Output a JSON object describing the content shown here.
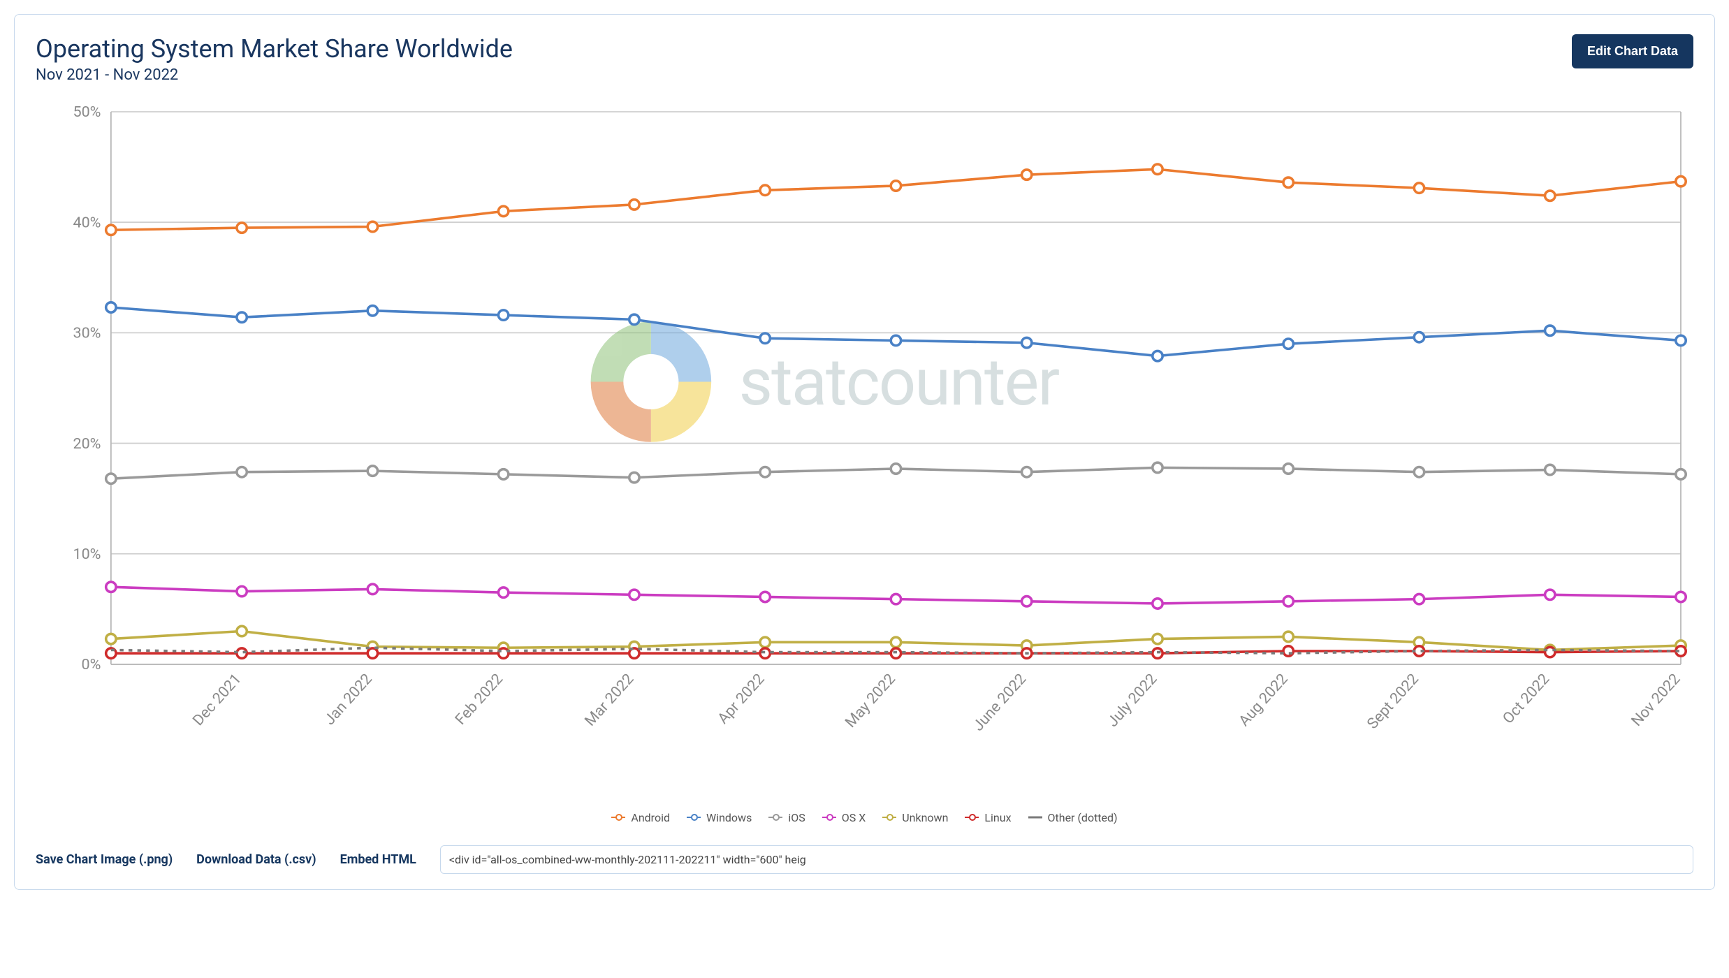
{
  "header": {
    "title": "Operating System Market Share Worldwide",
    "subtitle": "Nov 2021 - Nov 2022",
    "edit_button_label": "Edit Chart Data"
  },
  "chart": {
    "type": "line",
    "background_color": "#ffffff",
    "plot_border_color": "#b8b8b8",
    "grid_color": "#cfcfcf",
    "axis_text_color": "#8a8a8a",
    "axis_fontsize": 12,
    "watermark_text": "statcounter",
    "watermark_color": "#b8c5c8",
    "ylim": [
      0,
      50
    ],
    "ytick_step": 10,
    "ytick_suffix": "%",
    "x_labels": [
      "",
      "Dec 2021",
      "Jan 2022",
      "Feb 2022",
      "Mar 2022",
      "Apr 2022",
      "May 2022",
      "June 2022",
      "July 2022",
      "Aug 2022",
      "Sept 2022",
      "Oct 2022",
      "Nov 2022"
    ],
    "marker_radius": 4,
    "marker_fill": "#ffffff",
    "line_width": 2,
    "series": [
      {
        "name": "Android",
        "color": "#ec7b2f",
        "style": "solid",
        "values": [
          39.3,
          39.5,
          39.6,
          41.0,
          41.6,
          42.9,
          43.3,
          44.3,
          44.8,
          43.6,
          43.1,
          42.4,
          43.7
        ]
      },
      {
        "name": "Windows",
        "color": "#4981c6",
        "style": "solid",
        "values": [
          32.3,
          31.4,
          32.0,
          31.6,
          31.2,
          29.5,
          29.3,
          29.1,
          27.9,
          29.0,
          29.6,
          30.2,
          29.3
        ]
      },
      {
        "name": "iOS",
        "color": "#9a9a9a",
        "style": "solid",
        "values": [
          16.8,
          17.4,
          17.5,
          17.2,
          16.9,
          17.4,
          17.7,
          17.4,
          17.8,
          17.7,
          17.4,
          17.6,
          17.2
        ]
      },
      {
        "name": "OS X",
        "color": "#cb3cc1",
        "style": "solid",
        "values": [
          7.0,
          6.6,
          6.8,
          6.5,
          6.3,
          6.1,
          5.9,
          5.7,
          5.5,
          5.7,
          5.9,
          6.3,
          6.1
        ]
      },
      {
        "name": "Unknown",
        "color": "#c0af45",
        "style": "solid",
        "values": [
          2.3,
          3.0,
          1.6,
          1.5,
          1.6,
          2.0,
          2.0,
          1.7,
          2.3,
          2.5,
          2.0,
          1.3,
          1.7
        ]
      },
      {
        "name": "Linux",
        "color": "#cf2b2b",
        "style": "solid",
        "values": [
          1.0,
          1.0,
          1.0,
          1.0,
          1.0,
          1.0,
          1.0,
          1.0,
          1.0,
          1.2,
          1.2,
          1.1,
          1.2
        ]
      },
      {
        "name": "Other (dotted)",
        "color": "#7a7a7a",
        "style": "dotted",
        "values": [
          1.3,
          1.1,
          1.5,
          1.2,
          1.4,
          1.1,
          1.1,
          1.0,
          1.1,
          1.0,
          1.2,
          1.3,
          1.2
        ]
      }
    ],
    "legend": [
      {
        "label": "Android",
        "color": "#ec7b2f",
        "marker": true
      },
      {
        "label": "Windows",
        "color": "#4981c6",
        "marker": true
      },
      {
        "label": "iOS",
        "color": "#9a9a9a",
        "marker": true
      },
      {
        "label": "OS X",
        "color": "#cb3cc1",
        "marker": true
      },
      {
        "label": "Unknown",
        "color": "#c0af45",
        "marker": true
      },
      {
        "label": "Linux",
        "color": "#cf2b2b",
        "marker": true
      },
      {
        "label": "Other (dotted)",
        "color": "#7a7a7a",
        "marker": false
      }
    ]
  },
  "actions": {
    "save_png_label": "Save Chart Image (.png)",
    "download_csv_label": "Download Data (.csv)",
    "embed_html_label": "Embed HTML",
    "embed_input_value": "<div id=\"all-os_combined-ww-monthly-202111-202211\" width=\"600\" heig"
  }
}
